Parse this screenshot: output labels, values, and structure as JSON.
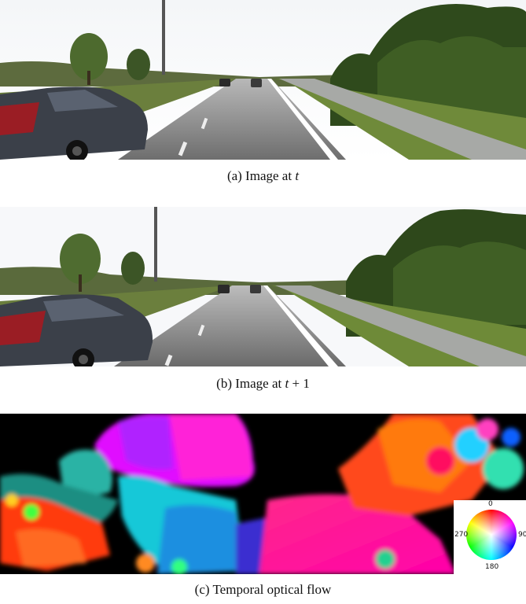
{
  "figure": {
    "panel_a": {
      "label": "(a) Image at ",
      "var": "t",
      "suffix": ""
    },
    "panel_b": {
      "label": "(b) Image at ",
      "var": "t",
      "suffix": " + 1"
    },
    "panel_c": {
      "label": "(c) Temporal optical flow"
    },
    "color_wheel": {
      "top": "0",
      "right": "90",
      "bottom": "180",
      "left": "270"
    }
  }
}
